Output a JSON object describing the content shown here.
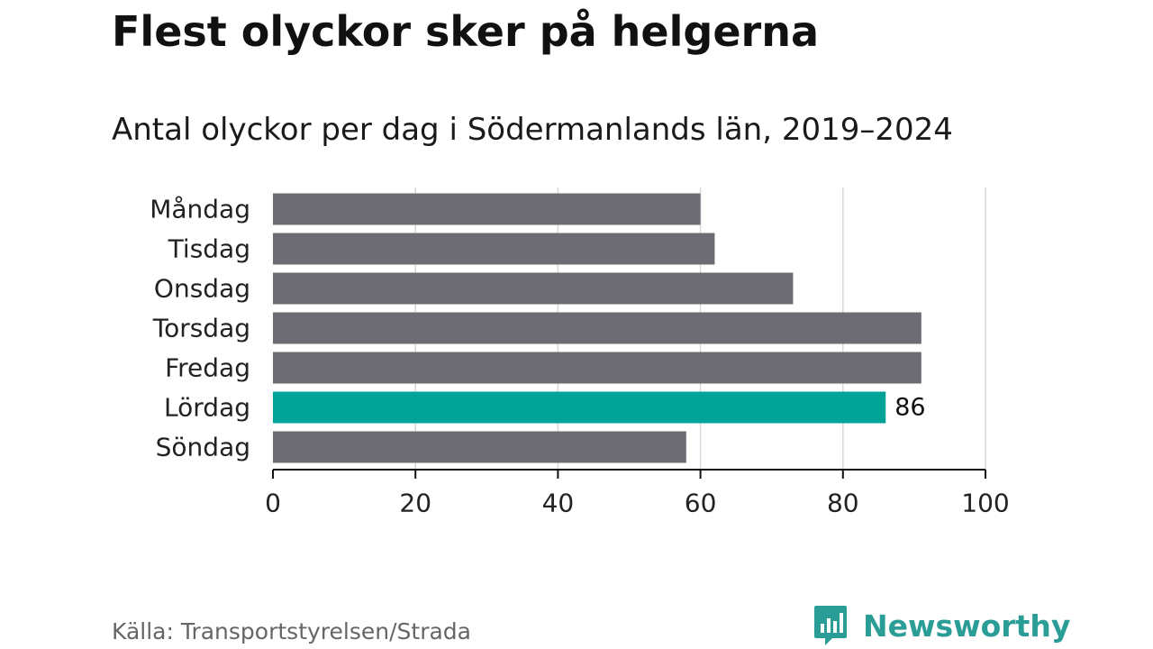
{
  "title": "Flest olyckor sker på helgerna",
  "subtitle": "Antal olyckor per dag i Södermanlands län, 2019–2024",
  "source": "Källa: Transportstyrelsen/Strada",
  "brand": {
    "name": "Newsworthy",
    "icon": "newsworthy-logo-icon",
    "color": "#2a9d96"
  },
  "colors": {
    "bar": "#6d6b73",
    "highlight": "#00a398",
    "grid": "#d9d9d9",
    "axis": "#111111"
  },
  "chart_data": {
    "type": "bar",
    "orientation": "horizontal",
    "categories": [
      "Måndag",
      "Tisdag",
      "Onsdag",
      "Torsdag",
      "Fredag",
      "Lördag",
      "Söndag"
    ],
    "values": [
      60,
      62,
      73,
      91,
      91,
      86,
      58
    ],
    "highlight_index": 5,
    "data_labels": [
      {
        "index": 5,
        "text": "86"
      }
    ],
    "xlim": [
      0,
      100
    ],
    "xticks": [
      0,
      20,
      40,
      60,
      80,
      100
    ],
    "grid": true,
    "legend": false
  }
}
